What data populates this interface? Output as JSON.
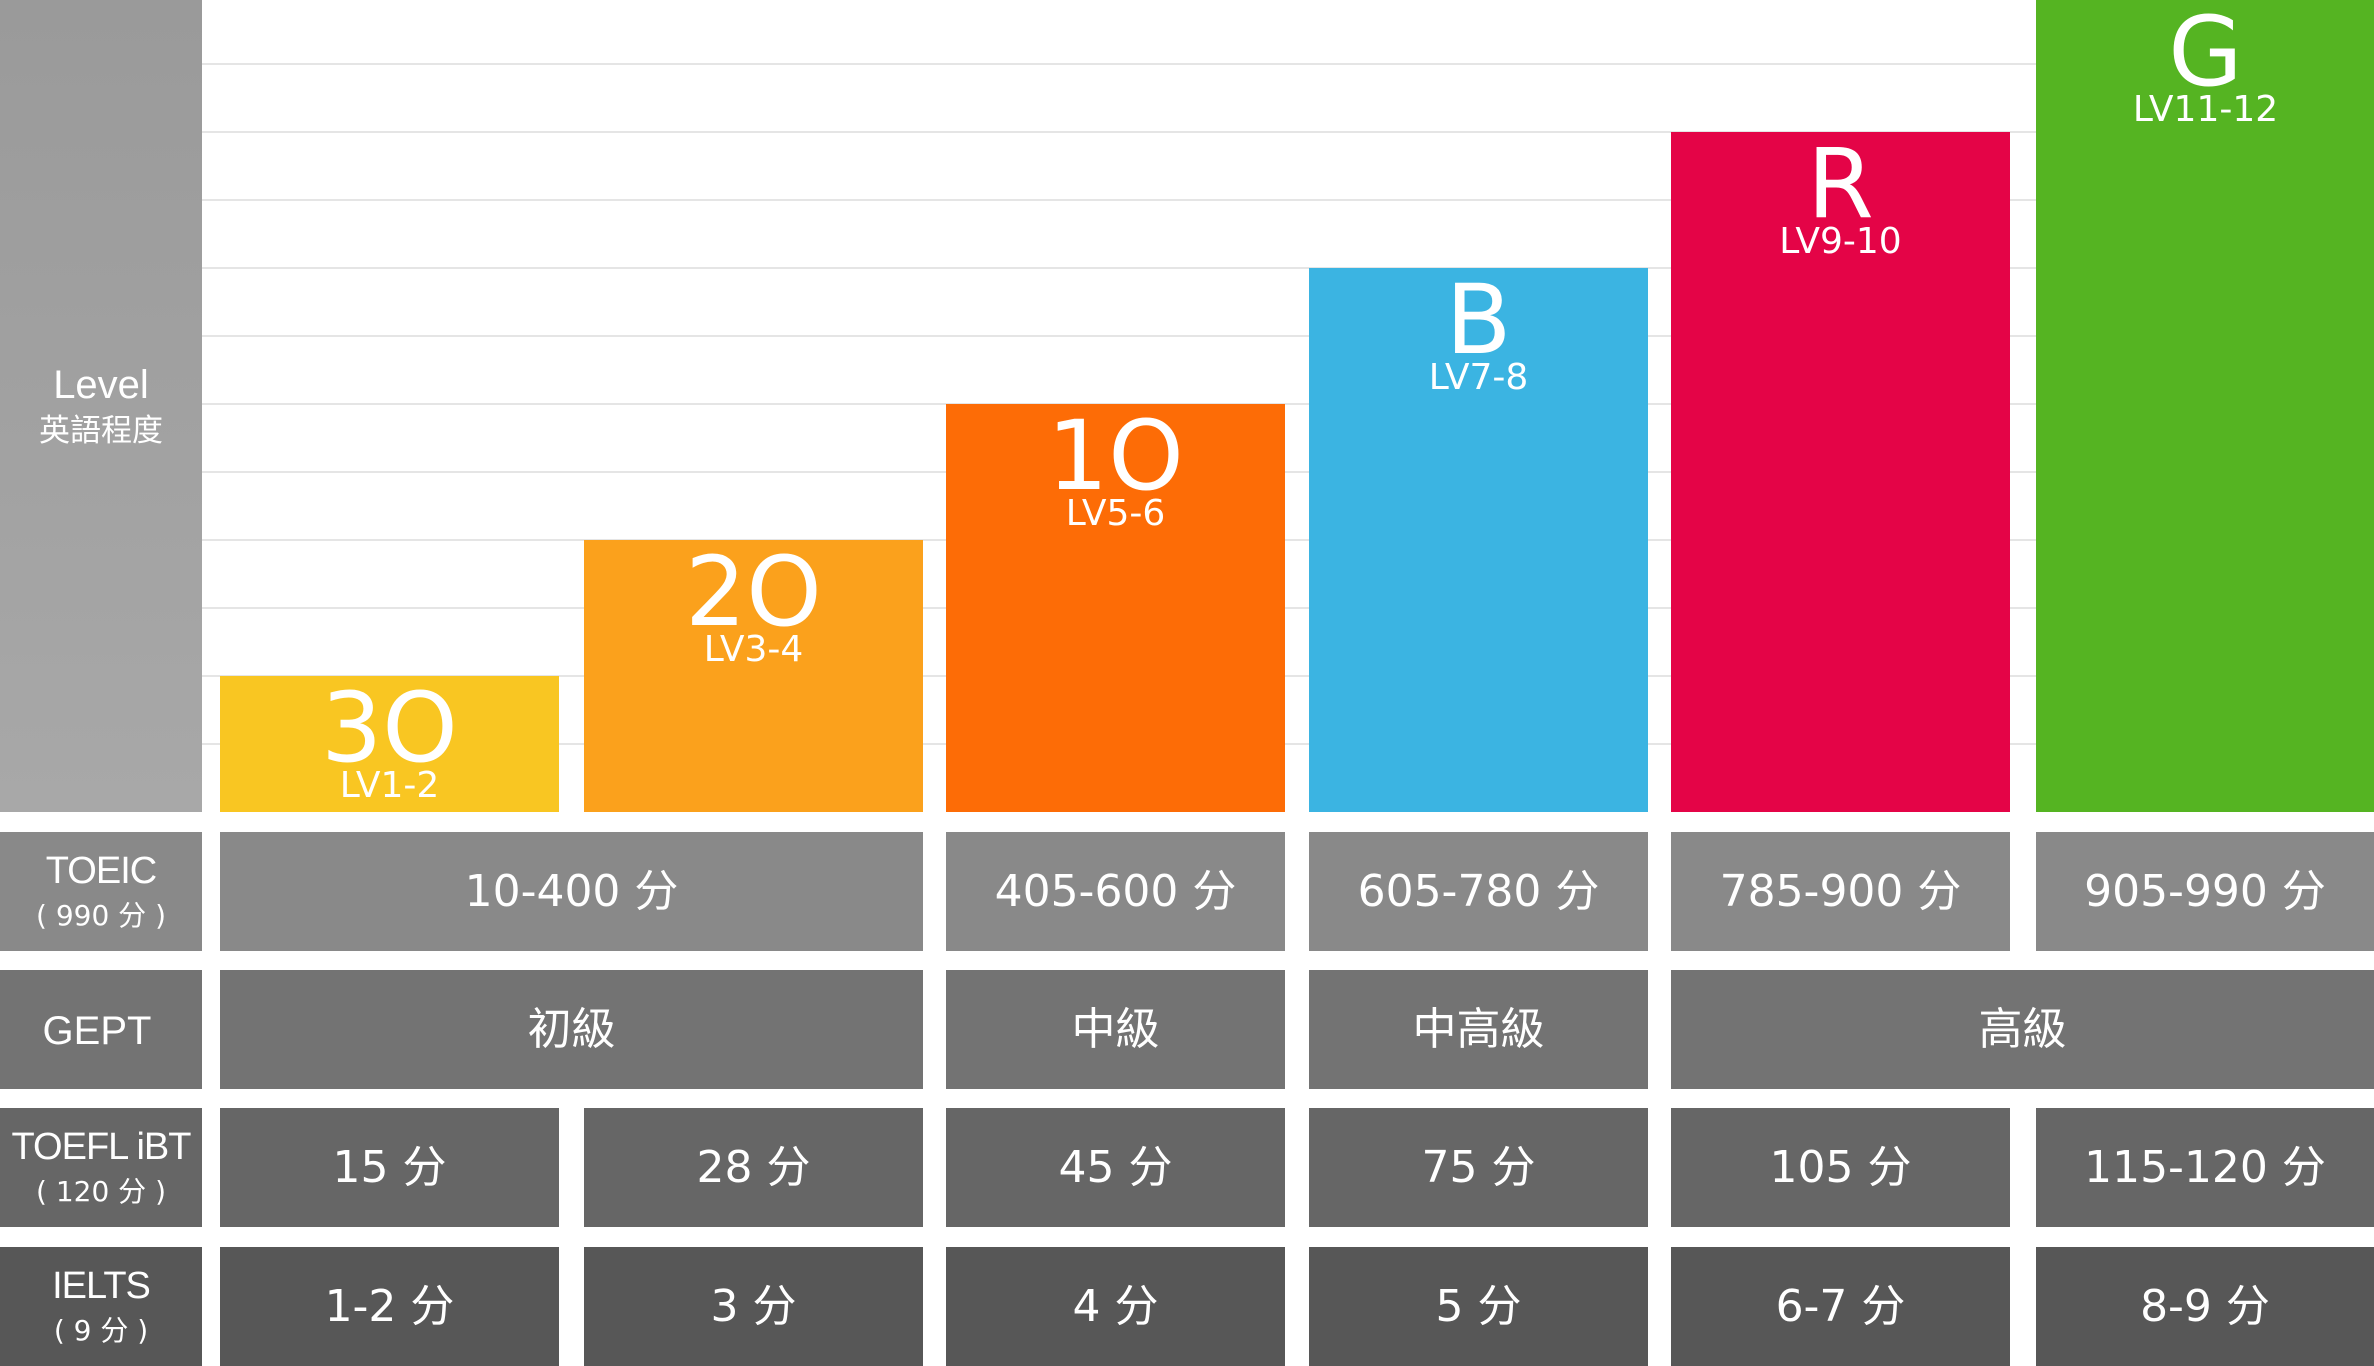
{
  "chart_data": {
    "type": "bar",
    "ylabel": {
      "title": "Level",
      "subtitle": "英語程度"
    },
    "categories": [
      "3O",
      "2O",
      "1O",
      "B",
      "R",
      "G"
    ],
    "level_labels": [
      "LV1-2",
      "LV3-4",
      "LV5-6",
      "LV7-8",
      "LV9-10",
      "LV11-12"
    ],
    "values": [
      2,
      4,
      6,
      8,
      10,
      12
    ],
    "ylim": [
      0,
      12
    ],
    "colors": [
      "#F9C622",
      "#FBA11C",
      "#FD6C06",
      "#3BB4E2",
      "#E40447",
      "#55B422"
    ],
    "grid": true,
    "table": {
      "rows": [
        {
          "key": "toeic",
          "label": "TOEIC",
          "sublabel": "( 990 分 )",
          "color": "#898989",
          "cells": [
            {
              "text": "10-400 分",
              "span": 2
            },
            {
              "text": "405-600 分",
              "span": 1
            },
            {
              "text": "605-780 分",
              "span": 1
            },
            {
              "text": "785-900 分",
              "span": 1
            },
            {
              "text": "905-990 分",
              "span": 1
            }
          ]
        },
        {
          "key": "gept",
          "label": "GEPT",
          "sublabel": "",
          "color": "#737373",
          "cells": [
            {
              "text": "初級",
              "span": 2
            },
            {
              "text": "中級",
              "span": 1
            },
            {
              "text": "中高級",
              "span": 1
            },
            {
              "text": "高級",
              "span": 2
            }
          ]
        },
        {
          "key": "toefl",
          "label": "TOEFL iBT",
          "sublabel": "( 120 分 )",
          "color": "#666666",
          "cells": [
            {
              "text": "15 分",
              "span": 1
            },
            {
              "text": "28 分",
              "span": 1
            },
            {
              "text": "45 分",
              "span": 1
            },
            {
              "text": "75 分",
              "span": 1
            },
            {
              "text": "105 分",
              "span": 1
            },
            {
              "text": "115-120 分",
              "span": 1
            }
          ]
        },
        {
          "key": "ielts",
          "label": "IELTS",
          "sublabel": "( 9 分 )",
          "color": "#575757",
          "cells": [
            {
              "text": "1-2 分",
              "span": 1
            },
            {
              "text": "3 分",
              "span": 1
            },
            {
              "text": "4 分",
              "span": 1
            },
            {
              "text": "5 分",
              "span": 1
            },
            {
              "text": "6-7 分",
              "span": 1
            },
            {
              "text": "8-9 分",
              "span": 1
            }
          ]
        }
      ]
    }
  }
}
